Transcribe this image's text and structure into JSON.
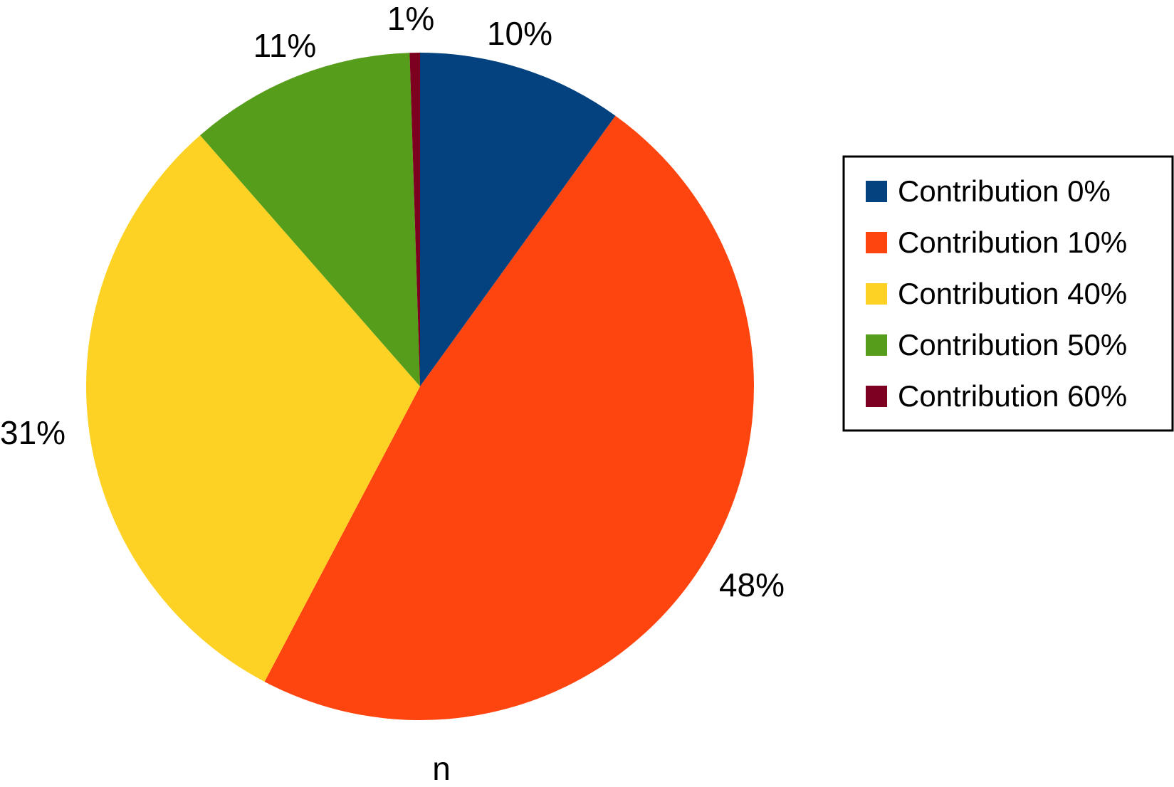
{
  "chart_data": {
    "type": "pie",
    "xlabel": "n",
    "start": "12 o'clock",
    "direction": "clockwise",
    "legend_placement": "right",
    "slices": [
      {
        "name": "Contribution 0%",
        "value": 10,
        "label": "10%",
        "color": "#03427f"
      },
      {
        "name": "Contribution 10%",
        "value": 48,
        "label": "48%",
        "color": "#fe4510"
      },
      {
        "name": "Contribution 40%",
        "value": 31,
        "label": "31%",
        "color": "#fed225"
      },
      {
        "name": "Contribution 50%",
        "value": 11,
        "label": "11%",
        "color": "#579d1c"
      },
      {
        "name": "Contribution 60%",
        "value": 0.5,
        "label": "1%",
        "color": "#7e0021"
      }
    ]
  }
}
